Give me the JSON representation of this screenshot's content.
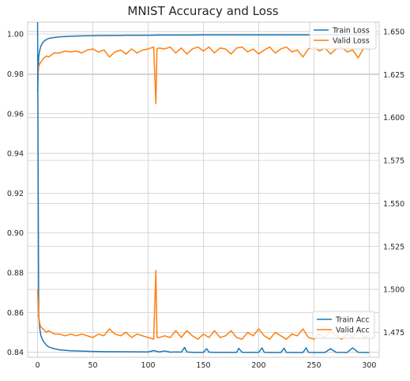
{
  "chart_data": {
    "type": "line",
    "title": "MNIST Accuracy and Loss",
    "xlabel": "",
    "ylabel": "",
    "y2label": "",
    "grid": true,
    "xlim": [
      -9,
      309
    ],
    "ylim": [
      0.8375,
      1.006
    ],
    "y2lim": [
      1.4605,
      1.6555
    ],
    "xticks": [
      0,
      50,
      100,
      150,
      200,
      250,
      300
    ],
    "yticks": [
      0.84,
      0.86,
      0.88,
      0.9,
      0.92,
      0.94,
      0.96,
      0.98,
      1.0
    ],
    "y2ticks": [
      1.475,
      1.5,
      1.525,
      1.55,
      1.575,
      1.6,
      1.625,
      1.65
    ],
    "xtick_labels": [
      "0",
      "50",
      "100",
      "150",
      "200",
      "250",
      "300"
    ],
    "ytick_labels": [
      "0.84",
      "0.86",
      "0.88",
      "0.90",
      "0.92",
      "0.94",
      "0.96",
      "0.98",
      "1.00"
    ],
    "y2tick_labels": [
      "1.475",
      "1.500",
      "1.525",
      "1.550",
      "1.575",
      "1.600",
      "1.625",
      "1.650"
    ],
    "legends": [
      {
        "placement": "top-right",
        "entries": [
          {
            "label": "Train Loss",
            "color": "#1f77b4"
          },
          {
            "label": "Valid Loss",
            "color": "#ff7f0e"
          }
        ]
      },
      {
        "placement": "bottom-right",
        "entries": [
          {
            "label": "Train Acc",
            "color": "#1f77b4"
          },
          {
            "label": "Valid Acc",
            "color": "#ff7f0e"
          }
        ]
      }
    ],
    "series": [
      {
        "name": "Train Acc",
        "axis": "left",
        "color": "#1f77b4",
        "x": [
          0,
          1,
          2,
          3,
          4,
          5,
          7,
          10,
          15,
          20,
          30,
          40,
          50,
          60,
          70,
          80,
          90,
          100,
          110,
          120,
          130,
          140,
          150,
          160,
          170,
          180,
          190,
          200,
          210,
          220,
          230,
          240,
          250,
          260,
          270,
          280,
          290,
          300
        ],
        "y": [
          0.971,
          0.9885,
          0.992,
          0.994,
          0.995,
          0.996,
          0.997,
          0.9978,
          0.9983,
          0.9986,
          0.9989,
          0.9991,
          0.9992,
          0.9993,
          0.9993,
          0.9994,
          0.9994,
          0.9994,
          0.9995,
          0.9995,
          0.9995,
          0.9995,
          0.9996,
          0.9996,
          0.9996,
          0.9996,
          0.9996,
          0.9996,
          0.9996,
          0.9996,
          0.9996,
          0.9996,
          0.9996,
          0.9997,
          0.9997,
          0.9997,
          0.9997,
          0.9997
        ]
      },
      {
        "name": "Valid Acc",
        "axis": "left",
        "color": "#ff7f0e",
        "x": [
          0,
          1,
          2,
          3,
          5,
          8,
          10,
          15,
          20,
          25,
          30,
          35,
          40,
          45,
          50,
          55,
          60,
          65,
          70,
          75,
          80,
          85,
          90,
          95,
          100,
          105,
          107,
          108,
          110,
          115,
          120,
          125,
          130,
          135,
          140,
          145,
          150,
          155,
          160,
          165,
          170,
          175,
          180,
          185,
          190,
          195,
          200,
          205,
          210,
          215,
          220,
          225,
          230,
          235,
          240,
          245,
          250,
          255,
          260,
          265,
          270,
          275,
          280,
          285,
          290,
          295,
          300
        ],
        "y": [
          0.977,
          0.984,
          0.985,
          0.986,
          0.9875,
          0.989,
          0.9885,
          0.9905,
          0.9905,
          0.9915,
          0.991,
          0.9915,
          0.9905,
          0.992,
          0.9925,
          0.991,
          0.992,
          0.9885,
          0.991,
          0.992,
          0.99,
          0.9925,
          0.9905,
          0.992,
          0.9925,
          0.9935,
          0.965,
          0.9925,
          0.993,
          0.9925,
          0.9935,
          0.9905,
          0.993,
          0.99,
          0.9925,
          0.9935,
          0.9915,
          0.9935,
          0.9905,
          0.993,
          0.9925,
          0.99,
          0.993,
          0.9935,
          0.991,
          0.9925,
          0.99,
          0.992,
          0.9935,
          0.9905,
          0.9925,
          0.9935,
          0.991,
          0.992,
          0.9885,
          0.9925,
          0.9935,
          0.9915,
          0.993,
          0.99,
          0.9925,
          0.9935,
          0.991,
          0.992,
          0.988,
          0.993,
          0.9925
        ]
      },
      {
        "name": "Train Loss",
        "axis": "right",
        "color": "#1f77b4",
        "x": [
          0,
          1,
          2,
          3,
          5,
          8,
          10,
          15,
          20,
          30,
          40,
          50,
          60,
          80,
          100,
          105,
          110,
          115,
          120,
          125,
          130,
          133,
          135,
          140,
          150,
          153,
          155,
          160,
          170,
          180,
          182,
          185,
          190,
          200,
          203,
          205,
          210,
          220,
          223,
          225,
          230,
          240,
          243,
          245,
          250,
          260,
          265,
          270,
          280,
          285,
          290,
          300
        ],
        "y": [
          1.6555,
          1.485,
          1.477,
          1.473,
          1.47,
          1.4675,
          1.4665,
          1.4655,
          1.4648,
          1.4643,
          1.4641,
          1.4639,
          1.4638,
          1.4637,
          1.4636,
          1.4644,
          1.4636,
          1.4642,
          1.4635,
          1.4636,
          1.4635,
          1.4662,
          1.4636,
          1.4634,
          1.4634,
          1.4655,
          1.4635,
          1.4634,
          1.4634,
          1.4633,
          1.4657,
          1.4634,
          1.4634,
          1.4634,
          1.466,
          1.4634,
          1.4633,
          1.4633,
          1.4658,
          1.4634,
          1.4633,
          1.4633,
          1.466,
          1.4634,
          1.4633,
          1.4633,
          1.4655,
          1.4634,
          1.4633,
          1.466,
          1.4634,
          1.4633
        ]
      },
      {
        "name": "Valid Loss",
        "axis": "right",
        "color": "#ff7f0e",
        "x": [
          0,
          1,
          2,
          3,
          5,
          8,
          10,
          15,
          20,
          25,
          30,
          35,
          40,
          45,
          50,
          55,
          60,
          65,
          70,
          75,
          80,
          85,
          90,
          95,
          100,
          105,
          107,
          108,
          110,
          115,
          120,
          125,
          130,
          135,
          140,
          145,
          150,
          155,
          160,
          165,
          170,
          175,
          180,
          185,
          190,
          195,
          200,
          205,
          210,
          215,
          220,
          225,
          230,
          235,
          240,
          245,
          250,
          255,
          260,
          265,
          270,
          275,
          280,
          285,
          290,
          295,
          300
        ],
        "y": [
          1.5,
          1.484,
          1.48,
          1.478,
          1.477,
          1.475,
          1.476,
          1.474,
          1.474,
          1.473,
          1.474,
          1.473,
          1.474,
          1.473,
          1.472,
          1.474,
          1.473,
          1.477,
          1.474,
          1.473,
          1.475,
          1.472,
          1.474,
          1.473,
          1.472,
          1.471,
          1.511,
          1.472,
          1.472,
          1.473,
          1.472,
          1.476,
          1.472,
          1.476,
          1.473,
          1.471,
          1.474,
          1.472,
          1.476,
          1.472,
          1.473,
          1.476,
          1.472,
          1.471,
          1.475,
          1.473,
          1.477,
          1.473,
          1.471,
          1.475,
          1.473,
          1.471,
          1.474,
          1.473,
          1.477,
          1.472,
          1.471,
          1.474,
          1.472,
          1.476,
          1.473,
          1.471,
          1.474,
          1.472,
          1.477,
          1.472,
          1.473
        ]
      }
    ]
  }
}
